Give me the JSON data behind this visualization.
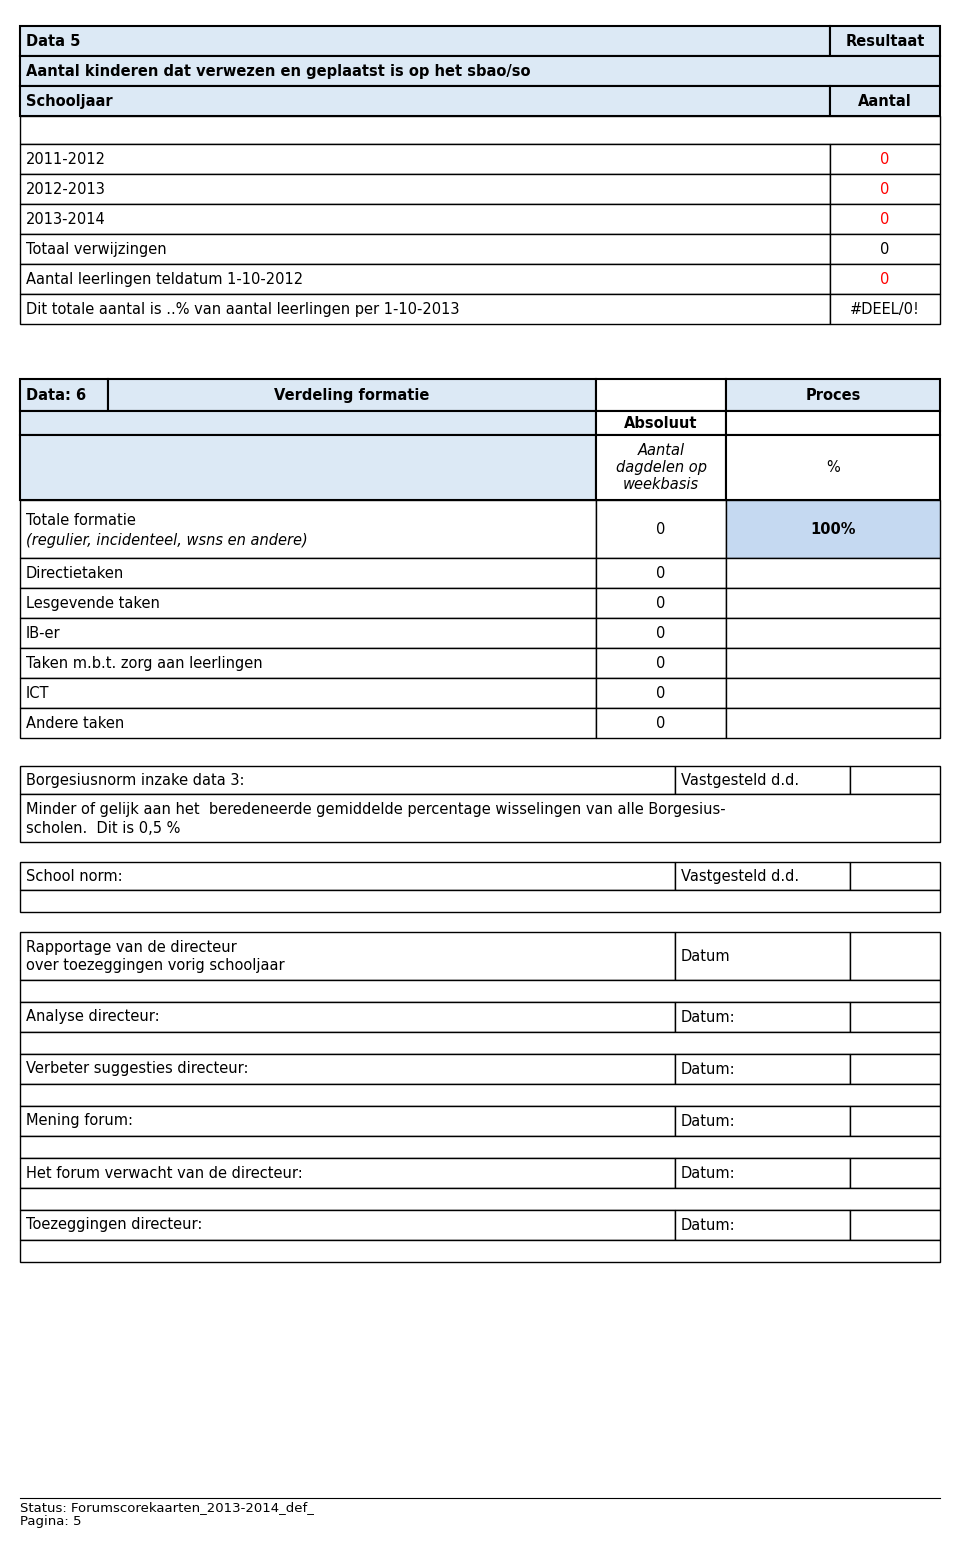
{
  "page_bg": "#ffffff",
  "light_blue_bg": "#dce9f5",
  "medium_blue_bg": "#c5d9f1",
  "border_color": "#000000",
  "text_color": "#000000",
  "red_color": "#ff0000",
  "table1": {
    "title_left": "Data 5",
    "title_right": "Resultaat",
    "row2": "Aantal kinderen dat verwezen en geplaatst is op het sbao/so",
    "col_header_left": "Schooljaar",
    "col_header_right": "Aantal",
    "rows": [
      [
        "2011-2012",
        "0",
        true
      ],
      [
        "2012-2013",
        "0",
        true
      ],
      [
        "2013-2014",
        "0",
        true
      ],
      [
        "Totaal verwijzingen",
        "0",
        false
      ],
      [
        "Aantal leerlingen teldatum 1-10-2012",
        "0",
        true
      ],
      [
        "Dit totale aantal is ..% van aantal leerlingen per 1-10-2013",
        "#DEEL/0!",
        false
      ]
    ]
  },
  "table2": {
    "header_col1": "Data: 6",
    "header_col2": "Verdeling formatie",
    "header_col4": "Proces",
    "subheader_col3a": "Absoluut",
    "subheader_col3b": "Aantal\ndagdelen op\nweekbasis",
    "subheader_col4": "%",
    "rows": [
      [
        "Totale formatie\n(regulier, incidenteel, wsns en andere)",
        "0",
        "100%"
      ],
      [
        "Directietaken",
        "0",
        ""
      ],
      [
        "Lesgevende taken",
        "0",
        ""
      ],
      [
        "IB-er",
        "0",
        ""
      ],
      [
        "Taken m.b.t. zorg aan leerlingen",
        "0",
        ""
      ],
      [
        "ICT",
        "0",
        ""
      ],
      [
        "Andere taken",
        "0",
        ""
      ]
    ]
  },
  "borgesius_row1_left": "Borgesiusnorm inzake data 3:",
  "borgesius_row1_right": "Vastgesteld d.d.",
  "borgesius_row2_line1": "Minder of gelijk aan het  beredeneerde gemiddelde percentage wisselingen van alle Borgesius-",
  "borgesius_row2_line2": "scholen.  Dit is 0,5 %",
  "school_norm_left": "School norm:",
  "school_norm_right": "Vastgesteld d.d.",
  "section_rows": [
    {
      "left": "Rapportage van de directeur\nover toezeggingen vorig schooljaar",
      "right": "Datum"
    },
    {
      "left": "Analyse directeur:",
      "right": "Datum:"
    },
    {
      "left": "Verbeter suggesties directeur:",
      "right": "Datum:"
    },
    {
      "left": "Mening forum:",
      "right": "Datum:"
    },
    {
      "left": "Het forum verwacht van de directeur:",
      "right": "Datum:"
    },
    {
      "left": "Toezeggingen directeur:",
      "right": "Datum:"
    }
  ],
  "footer_line1": "Status: Forumscorekaarten_2013-2014_def_",
  "footer_line2": "Pagina: 5",
  "figsize": [
    9.6,
    15.56
  ],
  "dpi": 100
}
